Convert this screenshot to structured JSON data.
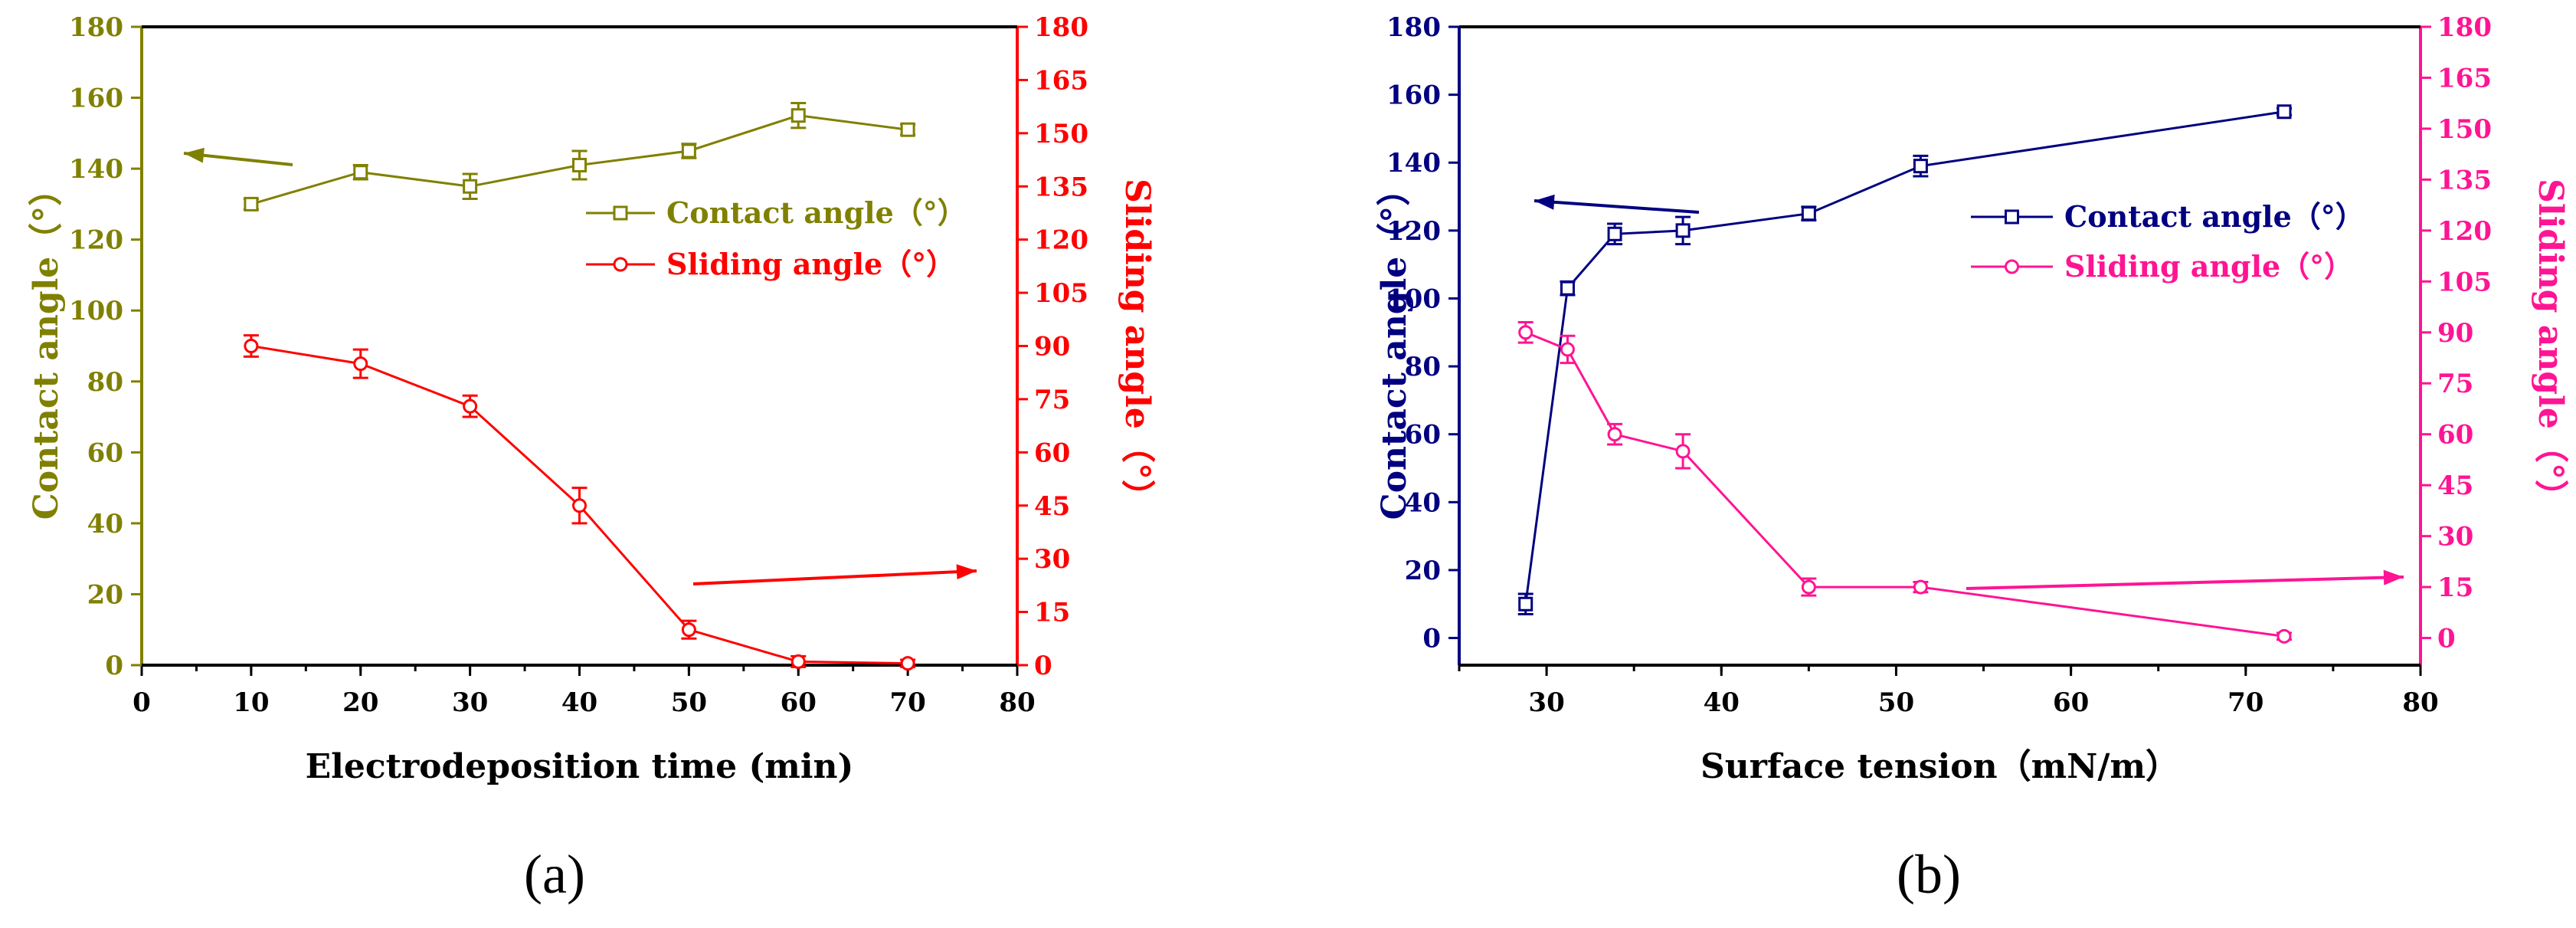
{
  "chart_data": [
    {
      "panel_label": "(a)",
      "type": "line",
      "xlabel": "Electrodeposition time (min)",
      "ylabel_left": "Contact angle（°）",
      "ylabel_right": "Sliding angle（°）",
      "xlim": [
        0,
        80
      ],
      "xticks": [
        "0",
        "10",
        "20",
        "30",
        "40",
        "50",
        "60",
        "70",
        "80"
      ],
      "ylim_left": [
        0,
        180
      ],
      "yticks_left": [
        "0",
        "20",
        "40",
        "60",
        "80",
        "100",
        "120",
        "140",
        "160",
        "180"
      ],
      "ylim_right": [
        0,
        180
      ],
      "yticks_right": [
        "0",
        "15",
        "30",
        "45",
        "60",
        "75",
        "90",
        "105",
        "120",
        "135",
        "150",
        "165",
        "180"
      ],
      "colors": {
        "left_axis": "#808000",
        "right_axis": "#ff0000",
        "contact": "#808000",
        "sliding": "#ff0000"
      },
      "series": [
        {
          "name": "Contact angle（°）",
          "marker": "square",
          "axis": "left",
          "x": [
            10,
            20,
            30,
            40,
            50,
            60,
            70
          ],
          "y": [
            130,
            139,
            135,
            141,
            145,
            155,
            151
          ],
          "err": [
            1.5,
            2,
            3.5,
            4,
            2,
            3.5,
            1.5
          ]
        },
        {
          "name": "Sliding angle（°）",
          "marker": "circle",
          "axis": "right",
          "x": [
            10,
            20,
            30,
            40,
            50,
            60,
            70
          ],
          "y": [
            90,
            85,
            73,
            45,
            10,
            1,
            0.5
          ],
          "err": [
            3,
            4,
            3,
            5,
            2.5,
            1.5,
            1
          ]
        }
      ],
      "annotations": [
        {
          "kind": "arrow",
          "points_to": "left axis"
        },
        {
          "kind": "arrow",
          "points_to": "right axis"
        }
      ]
    },
    {
      "panel_label": "(b)",
      "type": "line",
      "xlabel": "Surface tension（mN/m）",
      "ylabel_left": "Contact angle（°）",
      "ylabel_right": "Sliding angle（°）",
      "xlim": [
        25,
        80
      ],
      "xticks": [
        "30",
        "40",
        "50",
        "60",
        "70",
        "80"
      ],
      "ylim_left": [
        -8,
        180
      ],
      "yticks_left": [
        "0",
        "20",
        "40",
        "60",
        "80",
        "100",
        "120",
        "140",
        "160",
        "180"
      ],
      "ylim_right": [
        -8,
        180
      ],
      "yticks_right": [
        "0",
        "15",
        "30",
        "45",
        "60",
        "75",
        "90",
        "105",
        "120",
        "135",
        "150",
        "165",
        "180"
      ],
      "colors": {
        "left_axis": "#000080",
        "right_axis": "#ff1493",
        "contact": "#000080",
        "sliding": "#ff1493"
      },
      "series": [
        {
          "name": "Contact angle（°）",
          "marker": "square",
          "axis": "left",
          "x": [
            28.8,
            31.2,
            33.9,
            37.8,
            45,
            51.4,
            72.2
          ],
          "y": [
            10,
            103,
            119,
            120,
            125,
            139,
            155
          ],
          "err": [
            3,
            2,
            3,
            4,
            2,
            3,
            1
          ]
        },
        {
          "name": "Sliding angle（°）",
          "marker": "circle",
          "axis": "right",
          "x": [
            28.8,
            31.2,
            33.9,
            37.8,
            45,
            51.4,
            72.2
          ],
          "y": [
            90,
            85,
            60,
            55,
            15,
            15,
            0.5
          ],
          "err": [
            3,
            4,
            3,
            5,
            2.5,
            1.5,
            1
          ]
        }
      ],
      "annotations": [
        {
          "kind": "arrow",
          "points_to": "left axis"
        },
        {
          "kind": "arrow",
          "points_to": "right axis"
        }
      ]
    }
  ]
}
